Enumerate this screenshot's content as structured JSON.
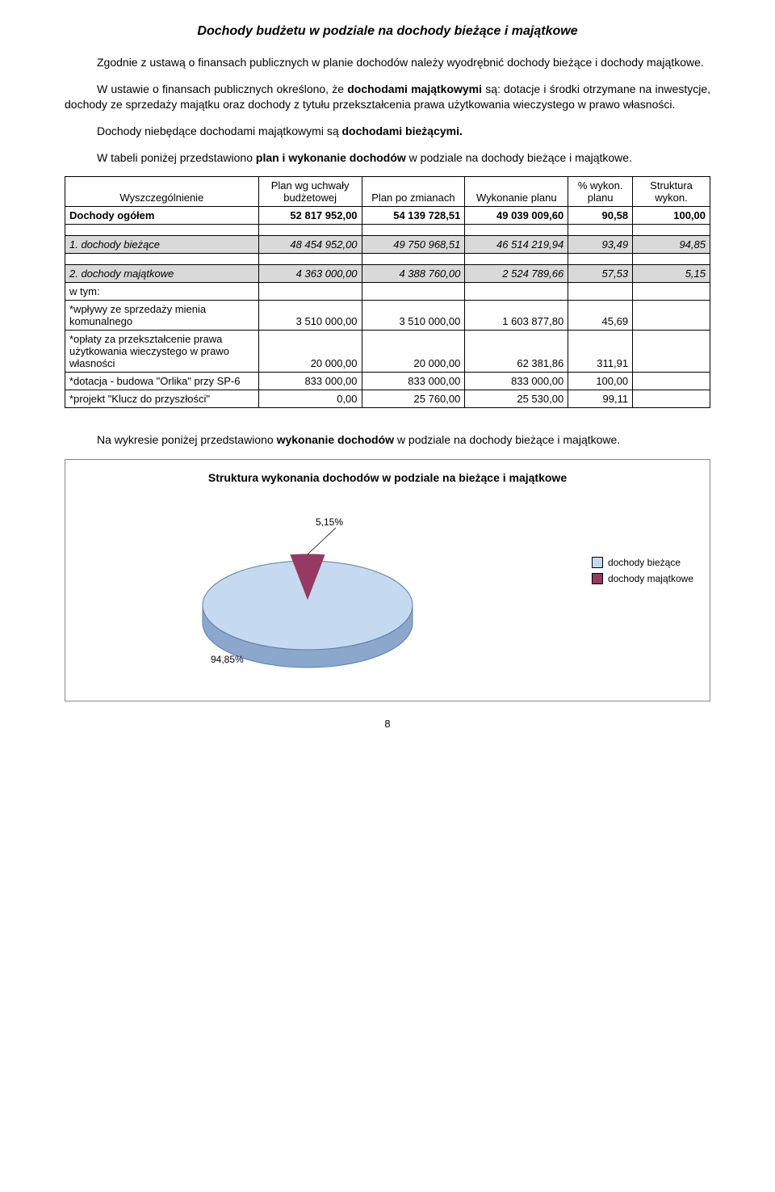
{
  "title": "Dochody budżetu w podziale na dochody bieżące i majątkowe",
  "para1": "Zgodnie z ustawą o finansach publicznych w planie dochodów należy wyodrębnić dochody bieżące i dochody majątkowe.",
  "para2_a": "W ustawie o finansach publicznych określono, że ",
  "para2_b": "dochodami majątkowymi",
  "para2_c": " są: dotacje i środki otrzymane na inwestycje, dochody ze sprzedaży majątku oraz dochody z tytułu przekształcenia prawa użytkowania wieczystego w prawo własności.",
  "para3_a": "Dochody niebędące dochodami majątkowymi są ",
  "para3_b": "dochodami bieżącymi.",
  "para4_a": "W tabeli poniżej przedstawiono ",
  "para4_b": "plan i wykonanie dochodów",
  "para4_c": " w podziale na dochody bieżące i majątkowe.",
  "table": {
    "headers": [
      "Wyszczególnienie",
      "Plan wg uchwały budżetowej",
      "Plan po zmianach",
      "Wykonanie planu",
      "% wykon. planu",
      "Struktura wykon."
    ],
    "col_widths": [
      "30%",
      "16%",
      "16%",
      "16%",
      "10%",
      "12%"
    ],
    "rows": [
      {
        "label": "Dochody ogółem",
        "c": [
          "52 817 952,00",
          "54 139 728,51",
          "49 039 009,60",
          "90,58",
          "100,00"
        ],
        "bold": true
      },
      {
        "label": "",
        "c": [
          "",
          "",
          "",
          "",
          ""
        ],
        "spacer": true
      },
      {
        "label": "1. dochody bieżące",
        "c": [
          "48 454 952,00",
          "49 750 968,51",
          "46 514 219,94",
          "93,49",
          "94,85"
        ],
        "italic": true,
        "shade": true
      },
      {
        "label": "",
        "c": [
          "",
          "",
          "",
          "",
          ""
        ],
        "spacer": true
      },
      {
        "label": "2. dochody majątkowe",
        "c": [
          "4 363 000,00",
          "4 388 760,00",
          "2 524 789,66",
          "57,53",
          "5,15"
        ],
        "italic": true,
        "shade": true
      },
      {
        "label": "   w tym:",
        "c": [
          "",
          "",
          "",
          "",
          ""
        ]
      },
      {
        "label": "  *wpływy ze sprzedaży mienia komunalnego",
        "c": [
          "3 510 000,00",
          "3 510 000,00",
          "1 603 877,80",
          "45,69",
          ""
        ]
      },
      {
        "label": "  *opłaty za przekształcenie prawa użytkowania wieczystego w prawo własności",
        "c": [
          "20 000,00",
          "20 000,00",
          "62 381,86",
          "311,91",
          ""
        ]
      },
      {
        "label": "  *dotacja - budowa \"Orlika\" przy SP-6",
        "c": [
          "833 000,00",
          "833 000,00",
          "833 000,00",
          "100,00",
          ""
        ]
      },
      {
        "label": "  *projekt \"Klucz do przyszłości\"",
        "c": [
          "0,00",
          "25 760,00",
          "25 530,00",
          "99,11",
          ""
        ]
      }
    ]
  },
  "para5_a": "Na wykresie poniżej przedstawiono ",
  "para5_b": "wykonanie dochodów",
  "para5_c": " w podziale na dochody bieżące i majątkowe.",
  "chart": {
    "type": "pie-3d",
    "title": "Struktura wykonania dochodów w podziale na bieżące i majątkowe",
    "slices": [
      {
        "label": "dochody bieżące",
        "pct": "94,85%",
        "value": 94.85,
        "color": "#c5d9f1"
      },
      {
        "label": "dochody majątkowe",
        "pct": "5,15%",
        "value": 5.15,
        "color": "#953a62"
      }
    ],
    "side_color": "#8ba8cc",
    "outline": "#6080a8",
    "background": "#ffffff",
    "legend_marker_border": "#000000",
    "title_fontsize": 14,
    "label_fontsize": 12,
    "aspect": "320x160"
  },
  "page_number": "8"
}
